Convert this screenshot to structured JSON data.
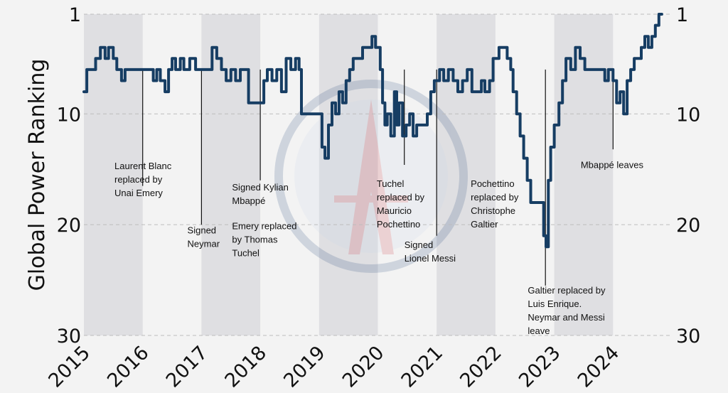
{
  "chart_data": {
    "type": "line",
    "ylabel": "Global Power Ranking",
    "y_axis": {
      "min": 1,
      "max": 30,
      "inverted": true,
      "ticks": [
        1,
        10,
        20,
        30
      ],
      "tick_labels": [
        "1",
        "10",
        "20",
        "30"
      ],
      "right_axis_mirrored": true
    },
    "x_axis": {
      "min": 2015.0,
      "max": 2025.0,
      "ticks": [
        2015,
        2016,
        2017,
        2018,
        2019,
        2020,
        2021,
        2022,
        2023,
        2024
      ],
      "tick_labels": [
        "2015",
        "2016",
        "2017",
        "2018",
        "2019",
        "2020",
        "2021",
        "2022",
        "2023",
        "2024"
      ]
    },
    "grid": "horizontal dashed",
    "background_watermark": "PSG club crest",
    "colors": {
      "line": "#163d63",
      "band": "#dfdfe2",
      "background": "#f3f3f3"
    },
    "shaded_bands": [
      [
        2015.0,
        2016.0
      ],
      [
        2017.0,
        2018.0
      ],
      [
        2019.0,
        2020.0
      ],
      [
        2021.0,
        2022.0
      ],
      [
        2023.0,
        2024.0
      ]
    ],
    "series": [
      {
        "points": [
          [
            2015.0,
            8
          ],
          [
            2015.05,
            6
          ],
          [
            2015.15,
            6
          ],
          [
            2015.2,
            5
          ],
          [
            2015.28,
            4
          ],
          [
            2015.36,
            5
          ],
          [
            2015.42,
            4
          ],
          [
            2015.5,
            5
          ],
          [
            2015.56,
            6
          ],
          [
            2015.64,
            7
          ],
          [
            2015.7,
            6
          ],
          [
            2016.0,
            6
          ],
          [
            2016.12,
            6
          ],
          [
            2016.18,
            7
          ],
          [
            2016.24,
            6
          ],
          [
            2016.3,
            7
          ],
          [
            2016.38,
            8
          ],
          [
            2016.44,
            6
          ],
          [
            2016.5,
            5
          ],
          [
            2016.56,
            6
          ],
          [
            2016.64,
            5
          ],
          [
            2016.7,
            6
          ],
          [
            2016.8,
            5
          ],
          [
            2016.9,
            6
          ],
          [
            2017.0,
            6
          ],
          [
            2017.1,
            6
          ],
          [
            2017.18,
            4
          ],
          [
            2017.26,
            5
          ],
          [
            2017.34,
            6
          ],
          [
            2017.42,
            7
          ],
          [
            2017.5,
            6
          ],
          [
            2017.58,
            7
          ],
          [
            2017.66,
            6
          ],
          [
            2017.75,
            6
          ],
          [
            2017.8,
            9
          ],
          [
            2018.0,
            9
          ],
          [
            2018.06,
            7
          ],
          [
            2018.12,
            6
          ],
          [
            2018.2,
            7
          ],
          [
            2018.28,
            6
          ],
          [
            2018.36,
            8
          ],
          [
            2018.44,
            5
          ],
          [
            2018.52,
            6
          ],
          [
            2018.6,
            5
          ],
          [
            2018.66,
            6
          ],
          [
            2018.7,
            10
          ],
          [
            2018.85,
            10
          ],
          [
            2019.0,
            10
          ],
          [
            2019.05,
            13
          ],
          [
            2019.1,
            14
          ],
          [
            2019.16,
            11
          ],
          [
            2019.22,
            9
          ],
          [
            2019.28,
            10
          ],
          [
            2019.34,
            8
          ],
          [
            2019.4,
            9
          ],
          [
            2019.46,
            7
          ],
          [
            2019.52,
            6
          ],
          [
            2019.58,
            5
          ],
          [
            2019.66,
            5
          ],
          [
            2019.74,
            4
          ],
          [
            2019.82,
            4
          ],
          [
            2019.9,
            3
          ],
          [
            2019.96,
            4
          ],
          [
            2020.0,
            4
          ],
          [
            2020.04,
            6
          ],
          [
            2020.08,
            9
          ],
          [
            2020.12,
            11
          ],
          [
            2020.16,
            10
          ],
          [
            2020.22,
            12
          ],
          [
            2020.28,
            8
          ],
          [
            2020.32,
            11
          ],
          [
            2020.36,
            9
          ],
          [
            2020.42,
            12
          ],
          [
            2020.48,
            11
          ],
          [
            2020.54,
            10
          ],
          [
            2020.6,
            12
          ],
          [
            2020.66,
            11
          ],
          [
            2020.72,
            11
          ],
          [
            2020.78,
            11
          ],
          [
            2020.84,
            10
          ],
          [
            2020.9,
            8
          ],
          [
            2020.96,
            7
          ],
          [
            2021.05,
            6
          ],
          [
            2021.12,
            7
          ],
          [
            2021.2,
            6
          ],
          [
            2021.28,
            7
          ],
          [
            2021.36,
            8
          ],
          [
            2021.44,
            7
          ],
          [
            2021.52,
            6
          ],
          [
            2021.6,
            8
          ],
          [
            2021.68,
            8
          ],
          [
            2021.76,
            7
          ],
          [
            2021.82,
            8
          ],
          [
            2021.9,
            7
          ],
          [
            2021.96,
            5
          ],
          [
            2022.0,
            5
          ],
          [
            2022.06,
            4
          ],
          [
            2022.14,
            4
          ],
          [
            2022.2,
            5
          ],
          [
            2022.26,
            6
          ],
          [
            2022.3,
            8
          ],
          [
            2022.36,
            10
          ],
          [
            2022.42,
            12
          ],
          [
            2022.48,
            14
          ],
          [
            2022.54,
            16
          ],
          [
            2022.6,
            18
          ],
          [
            2022.7,
            18
          ],
          [
            2022.78,
            18
          ],
          [
            2022.82,
            21
          ],
          [
            2022.86,
            22
          ],
          [
            2022.9,
            16
          ],
          [
            2022.94,
            13
          ],
          [
            2023.0,
            11
          ],
          [
            2023.08,
            9
          ],
          [
            2023.14,
            7
          ],
          [
            2023.2,
            5
          ],
          [
            2023.28,
            6
          ],
          [
            2023.36,
            4
          ],
          [
            2023.44,
            5
          ],
          [
            2023.52,
            6
          ],
          [
            2023.6,
            6
          ],
          [
            2023.68,
            6
          ],
          [
            2023.8,
            6
          ],
          [
            2023.86,
            7
          ],
          [
            2023.92,
            6
          ],
          [
            2024.0,
            7
          ],
          [
            2024.06,
            9
          ],
          [
            2024.12,
            8
          ],
          [
            2024.18,
            10
          ],
          [
            2024.24,
            7
          ],
          [
            2024.3,
            6
          ],
          [
            2024.36,
            5
          ],
          [
            2024.42,
            5
          ],
          [
            2024.48,
            4
          ],
          [
            2024.54,
            3
          ],
          [
            2024.6,
            4
          ],
          [
            2024.66,
            3
          ],
          [
            2024.72,
            2
          ],
          [
            2024.78,
            1
          ],
          [
            2024.83,
            1
          ]
        ]
      }
    ],
    "annotations": [
      {
        "x": 2016.0,
        "lines": [
          "Laurent Blanc",
          "replaced by",
          "Unai Emery"
        ],
        "label_x": 2015.52,
        "label_rank": 15.0,
        "line_to_rank": 16.5
      },
      {
        "x": 2017.0,
        "lines": [
          "Signed",
          "Neymar"
        ],
        "label_x": 2016.76,
        "label_rank": 20.8,
        "line_to_rank": 20.0
      },
      {
        "x": 2018.0,
        "lines": [
          "Signed Kylian",
          "Mbappé"
        ],
        "label_x": 2017.52,
        "label_rank": 16.9,
        "line_to_rank": 16.0
      },
      {
        "x": 2018.0,
        "lines": [
          "Emery replaced",
          "by Thomas",
          "Tuchel"
        ],
        "label_x": 2017.52,
        "label_rank": 20.4,
        "line_to_rank": null
      },
      {
        "x": 2020.45,
        "lines": [
          "Tuchel",
          "replaced by",
          "Mauricio",
          "Pochettino"
        ],
        "label_x": 2019.98,
        "label_rank": 16.6,
        "line_to_rank": 14.6
      },
      {
        "x": 2021.0,
        "lines": [
          "Signed",
          "Lionel Messi"
        ],
        "label_x": 2020.45,
        "label_rank": 22.1,
        "line_to_rank": 21.0
      },
      {
        "x": 2021.6,
        "lines": [
          "Pochettino",
          "replaced by",
          "Christophe",
          "Galtier"
        ],
        "label_x": 2021.58,
        "label_rank": 16.6,
        "line_to_rank": null
      },
      {
        "x": 2022.85,
        "lines": [
          "Galtier replaced by",
          "Luis Enrique.",
          "Neymar and Messi",
          "leave"
        ],
        "label_x": 2022.55,
        "label_rank": 26.2,
        "line_to_rank": 25.5
      },
      {
        "x": 2024.0,
        "lines": [
          "Mbappé leaves"
        ],
        "label_x": 2023.45,
        "label_rank": 14.9,
        "line_to_rank": 13.2
      }
    ]
  }
}
